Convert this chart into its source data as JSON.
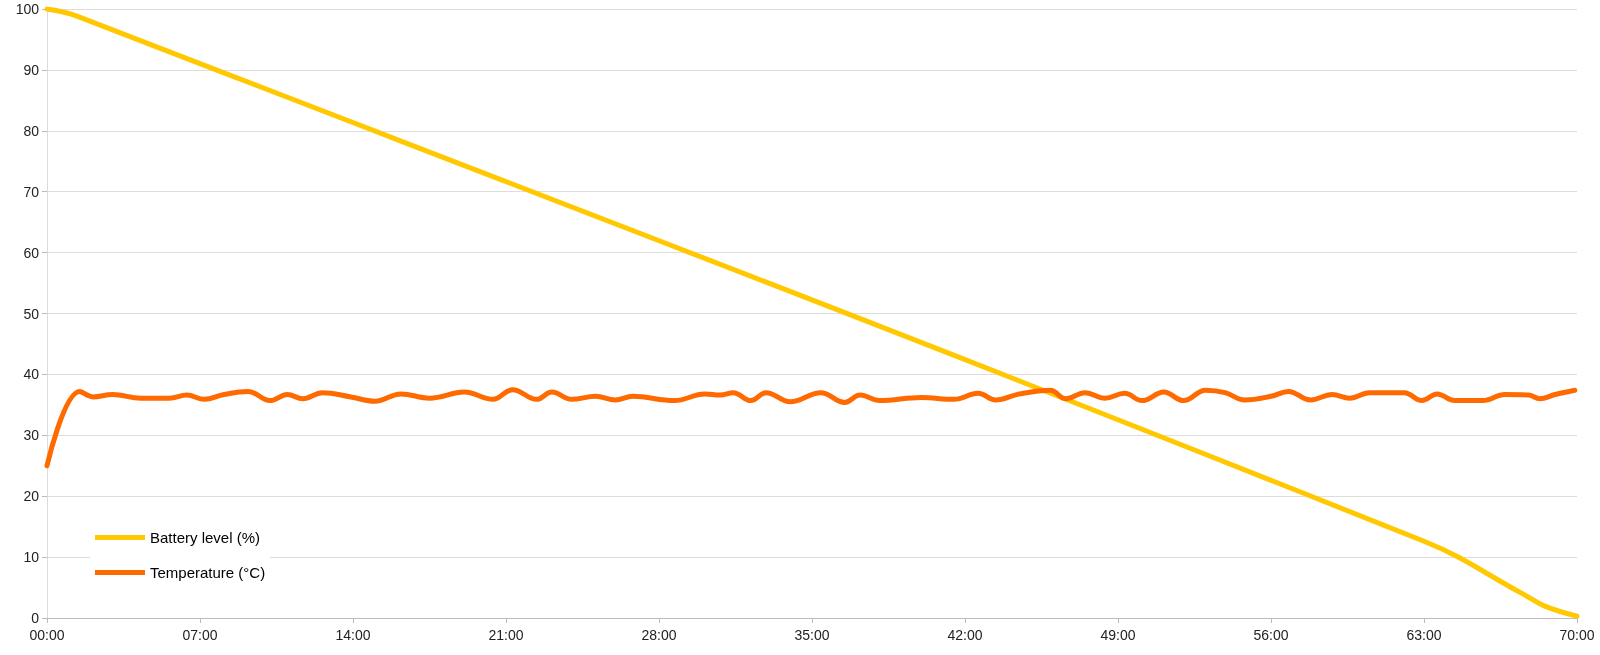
{
  "chart_data": {
    "type": "line",
    "marker": "none",
    "line_style": "solid",
    "grid": "y",
    "legend": "bottom left",
    "xlim": [
      0,
      70
    ],
    "xticks": [
      {
        "value": 0,
        "label": "00:00"
      },
      {
        "value": 7,
        "label": "07:00"
      },
      {
        "value": 14,
        "label": "14:00"
      },
      {
        "value": 21,
        "label": "21:00"
      },
      {
        "value": 28,
        "label": "28:00"
      },
      {
        "value": 35,
        "label": "35:00"
      },
      {
        "value": 42,
        "label": "42:00"
      },
      {
        "value": 49,
        "label": "49:00"
      },
      {
        "value": 56,
        "label": "56:00"
      },
      {
        "value": 63,
        "label": "63:00"
      },
      {
        "value": 70,
        "label": "70:00"
      }
    ],
    "ylim": [
      0,
      100
    ],
    "yticks": [
      0,
      10,
      20,
      30,
      40,
      50,
      60,
      70,
      80,
      90,
      100
    ],
    "series": [
      {
        "name": "Battery level (%)",
        "color": "#ffc800",
        "x": [
          0,
          1.4,
          63,
          67.5,
          68.5,
          70
        ],
        "values": [
          100,
          98.8,
          12.6,
          4,
          2,
          0.3
        ]
      },
      {
        "name": "Temperature (°C)",
        "color": "#ff6a00",
        "x": [
          0,
          1.5,
          2.1,
          3.0,
          4.3,
          5.6,
          6.4,
          7.2,
          8.1,
          9.2,
          10.2,
          11.0,
          11.7,
          12.6,
          13.9,
          15.0,
          16.2,
          17.5,
          19.1,
          20.4,
          21.3,
          22.4,
          23.1,
          24.0,
          25.1,
          26.0,
          26.8,
          28.7,
          30.1,
          30.8,
          31.4,
          32.2,
          32.9,
          34.0,
          35.4,
          36.5,
          37.2,
          38.1,
          40.0,
          41.5,
          42.6,
          43.4,
          44.5,
          45.9,
          46.6,
          47.5,
          48.4,
          49.3,
          50.1,
          51.1,
          52.0,
          53.0,
          53.9,
          54.8,
          56.0,
          56.8,
          57.8,
          58.8,
          59.6,
          60.5,
          62.1,
          62.9,
          63.6,
          64.4,
          65.7,
          66.7,
          67.8,
          68.3,
          69.0,
          69.9
        ],
        "values": [
          25,
          37.2,
          36.3,
          36.7,
          36.1,
          36.1,
          36.6,
          35.9,
          36.7,
          37.2,
          35.7,
          36.7,
          36.0,
          37.0,
          36.3,
          35.6,
          36.8,
          36.1,
          37.1,
          35.9,
          37.5,
          35.9,
          37.1,
          35.9,
          36.4,
          35.8,
          36.4,
          35.7,
          36.8,
          36.6,
          37.0,
          35.7,
          37.0,
          35.5,
          37.0,
          35.4,
          36.6,
          35.7,
          36.2,
          35.9,
          36.9,
          35.8,
          36.8,
          37.4,
          36.0,
          37.0,
          36.1,
          36.9,
          35.7,
          37.1,
          35.7,
          37.4,
          37.0,
          35.8,
          36.4,
          37.2,
          35.8,
          36.7,
          36.1,
          37.0,
          37.0,
          35.7,
          36.8,
          35.7,
          35.7,
          36.7,
          36.6,
          36.0,
          36.7,
          37.4
        ]
      }
    ]
  }
}
